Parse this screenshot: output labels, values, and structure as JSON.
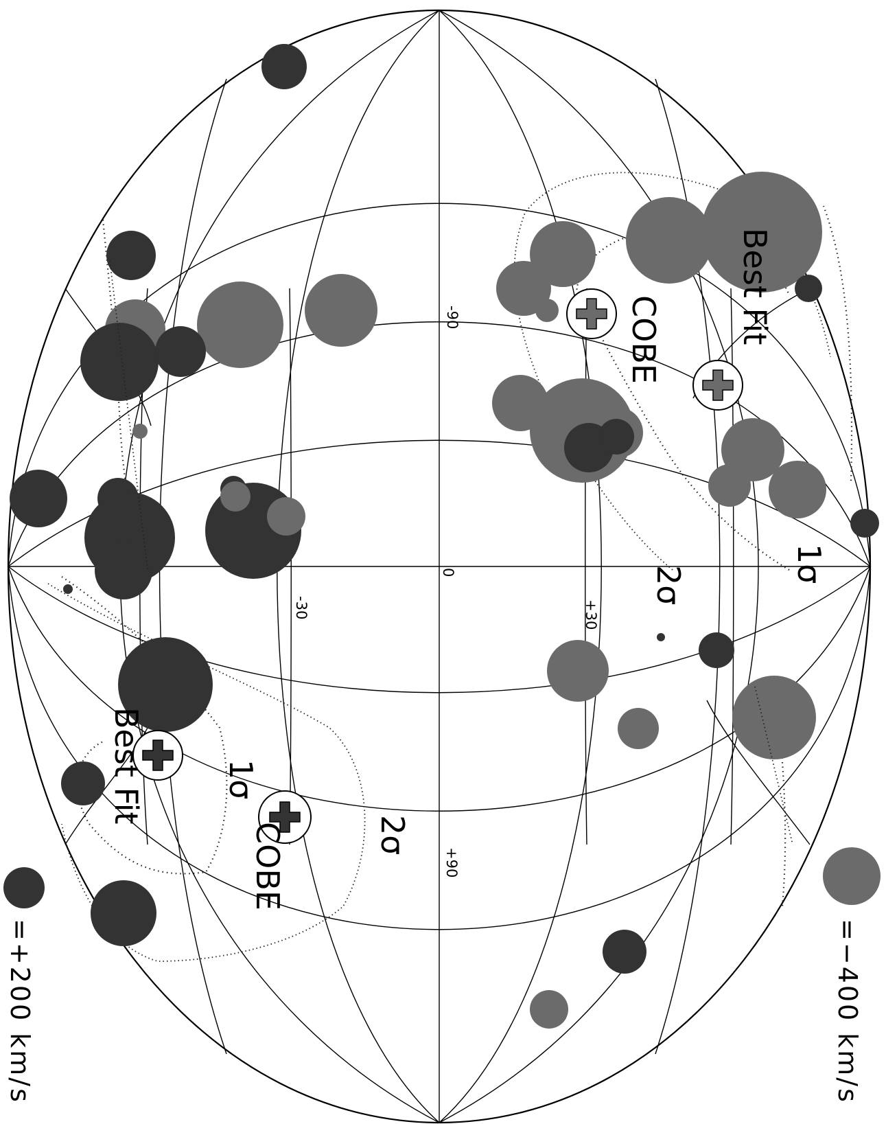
{
  "colors": {
    "negative": "#6b6b6b",
    "positive": "#333333",
    "line": "#000000"
  },
  "ticks": {
    "lat_m90": "-90",
    "lat_m30": "-30",
    "lat_0": "0",
    "lat_p30": "+30",
    "lat_p90": "+90"
  },
  "labels": {
    "best_fit_a": "Best Fit",
    "best_fit_b": "Best Fit",
    "cobe_a": "COBE",
    "cobe_b": "COBE",
    "sigma1_a": "1σ",
    "sigma2_a": "2σ",
    "sigma1_b": "1σ",
    "sigma2_b": "2σ"
  },
  "legend": {
    "negative": "=−400 km/s",
    "positive": "=+200 km/s"
  },
  "markers": [
    {
      "name": "cobe-marker-upper",
      "color": "#6b6b6b"
    },
    {
      "name": "best-fit-marker-upper",
      "color": "#6b6b6b"
    },
    {
      "name": "best-fit-marker-lower",
      "color": "#333333"
    },
    {
      "name": "cobe-marker-lower",
      "color": "#333333"
    }
  ]
}
